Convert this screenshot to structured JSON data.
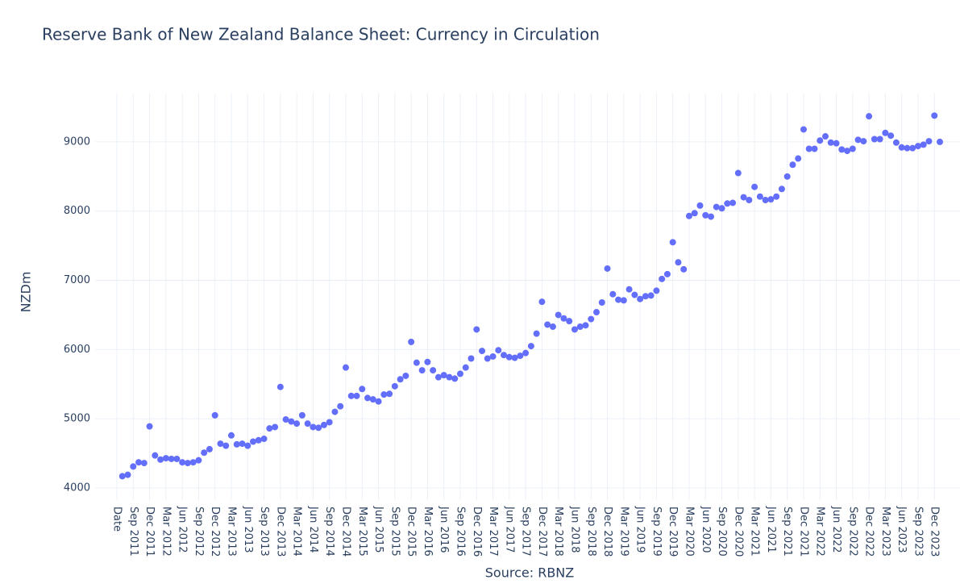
{
  "chart_data": {
    "type": "scatter",
    "title": "Reserve Bank of New Zealand Balance Sheet: Currency in Circulation",
    "x_label": "Source: RBNZ",
    "y_label": "NZDm",
    "color": "#636efa",
    "grid": true,
    "categories": [
      "Date",
      null,
      null,
      "Sep 2011",
      null,
      null,
      "Dec 2011",
      null,
      null,
      "Mar 2012",
      null,
      null,
      "Jun 2012",
      null,
      null,
      "Sep 2012",
      null,
      null,
      "Dec 2012",
      null,
      null,
      "Mar 2013",
      null,
      null,
      "Jun 2013",
      null,
      null,
      "Sep 2013",
      null,
      null,
      "Dec 2013",
      null,
      null,
      "Mar 2014",
      null,
      null,
      "Jun 2014",
      null,
      null,
      "Sep 2014",
      null,
      null,
      "Dec 2014",
      null,
      null,
      "Mar 2015",
      null,
      null,
      "Jun 2015",
      null,
      null,
      "Sep 2015",
      null,
      null,
      "Dec 2015",
      null,
      null,
      "Mar 2016",
      null,
      null,
      "Jun 2016",
      null,
      null,
      "Sep 2016",
      null,
      null,
      "Dec 2016",
      null,
      null,
      "Mar 2017",
      null,
      null,
      "Jun 2017",
      null,
      null,
      "Sep 2017",
      null,
      null,
      "Dec 2017",
      null,
      null,
      "Mar 2018",
      null,
      null,
      "Jun 2018",
      null,
      null,
      "Sep 2018",
      null,
      null,
      "Dec 2018",
      null,
      null,
      "Mar 2019",
      null,
      null,
      "Jun 2019",
      null,
      null,
      "Sep 2019",
      null,
      null,
      "Dec 2019",
      null,
      null,
      "Mar 2020",
      null,
      null,
      "Jun 2020",
      null,
      null,
      "Sep 2020",
      null,
      null,
      "Dec 2020",
      null,
      null,
      "Mar 2021",
      null,
      null,
      "Jun 2021",
      null,
      null,
      "Sep 2021",
      null,
      null,
      "Dec 2021",
      null,
      null,
      "Mar 2022",
      null,
      null,
      "Jun 2022",
      null,
      null,
      "Sep 2022",
      null,
      null,
      "Dec 2022",
      null,
      null,
      "Mar 2023",
      null,
      null,
      "Jun 2023",
      null,
      null,
      "Sep 2023",
      null,
      null,
      "Dec 2023",
      null
    ],
    "values": [
      null,
      4170,
      4190,
      4310,
      4370,
      4360,
      4890,
      4470,
      4410,
      4430,
      4420,
      4420,
      4370,
      4360,
      4370,
      4400,
      4510,
      4560,
      5050,
      4640,
      4610,
      4760,
      4630,
      4640,
      4610,
      4670,
      4690,
      4710,
      4860,
      4880,
      5460,
      4990,
      4960,
      4930,
      5050,
      4930,
      4880,
      4870,
      4910,
      4950,
      5100,
      5180,
      5740,
      5330,
      5330,
      5430,
      5300,
      5280,
      5250,
      5350,
      5360,
      5470,
      5570,
      5620,
      6110,
      5810,
      5700,
      5820,
      5700,
      5600,
      5630,
      5600,
      5580,
      5650,
      5740,
      5870,
      6290,
      5980,
      5870,
      5900,
      5990,
      5920,
      5890,
      5880,
      5910,
      5950,
      6050,
      6230,
      6690,
      6360,
      6330,
      6500,
      6450,
      6410,
      6290,
      6330,
      6350,
      6440,
      6540,
      6680,
      7170,
      6800,
      6720,
      6710,
      6870,
      6790,
      6730,
      6770,
      6780,
      6850,
      7020,
      7090,
      7550,
      7260,
      7160,
      7930,
      7970,
      8080,
      7940,
      7920,
      8060,
      8040,
      8110,
      8120,
      8550,
      8200,
      8160,
      8350,
      8210,
      8160,
      8170,
      8210,
      8320,
      8500,
      8670,
      8760,
      9180,
      8900,
      8900,
      9020,
      9080,
      8990,
      8980,
      8890,
      8870,
      8900,
      9030,
      9010,
      9370,
      9040,
      9040,
      9130,
      9090,
      8990,
      8920,
      8910,
      8910,
      8940,
      8960,
      9010,
      9380,
      9000
    ],
    "ylim": [
      3825,
      9710
    ],
    "yticks": [
      4000,
      5000,
      6000,
      7000,
      8000,
      9000
    ]
  }
}
